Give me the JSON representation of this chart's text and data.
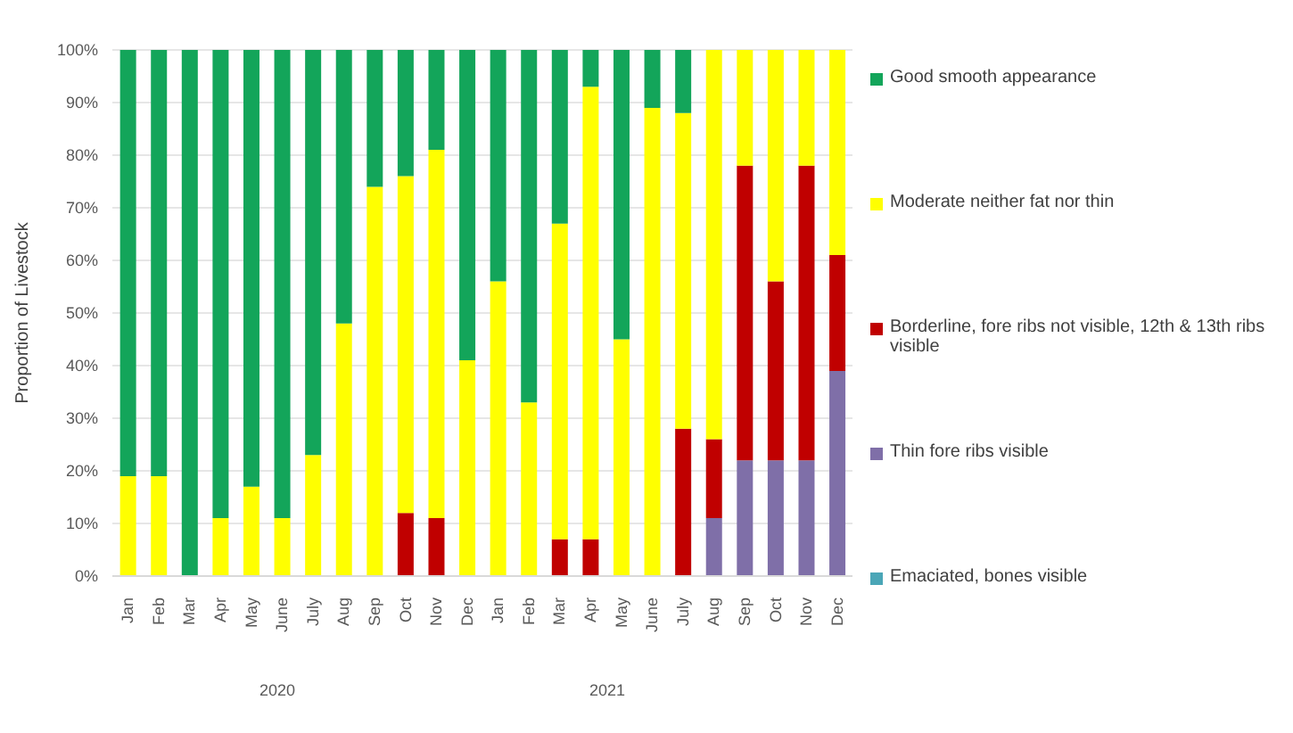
{
  "chart_data": {
    "type": "bar",
    "stacked": true,
    "ylabel": "Proportion of Livestock",
    "categories": [
      "Jan",
      "Feb",
      "Mar",
      "Apr",
      "May",
      "June",
      "July",
      "Aug",
      "Sep",
      "Oct",
      "Nov",
      "Dec",
      "Jan",
      "Feb",
      "Mar",
      "Apr",
      "May",
      "June",
      "July",
      "Aug",
      "Sep",
      "Oct",
      "Nov",
      "Dec"
    ],
    "series": [
      {
        "name": "Emaciated, bones visible",
        "color": "#4aa6b7",
        "values": [
          0,
          0,
          0,
          0,
          0,
          0,
          0,
          0,
          0,
          0,
          0,
          0,
          0,
          0,
          0,
          0,
          0,
          0,
          0,
          0,
          0,
          0,
          0,
          0
        ]
      },
      {
        "name": "Thin fore ribs visible",
        "color": "#7f6fa8",
        "values": [
          0,
          0,
          0,
          0,
          0,
          0,
          0,
          0,
          0,
          0,
          0,
          0,
          0,
          0,
          0,
          0,
          0,
          0,
          0,
          11,
          22,
          22,
          22,
          39
        ]
      },
      {
        "name": "Borderline, fore ribs not visible, 12th & 13th ribs visible",
        "color": "#c00000",
        "values": [
          0,
          0,
          0,
          0,
          0,
          0,
          0,
          0,
          0,
          12,
          11,
          0,
          0,
          0,
          7,
          7,
          0,
          0,
          28,
          15,
          56,
          34,
          56,
          22
        ]
      },
      {
        "name": "Moderate neither fat nor thin",
        "color": "#ffff00",
        "values": [
          19,
          19,
          0,
          11,
          17,
          11,
          23,
          48,
          74,
          64,
          70,
          41,
          56,
          33,
          60,
          86,
          45,
          89,
          60,
          74,
          22,
          44,
          22,
          39
        ]
      },
      {
        "name": "Good smooth appearance",
        "color": "#13a55a",
        "values": [
          81,
          81,
          100,
          89,
          83,
          89,
          77,
          52,
          26,
          24,
          19,
          59,
          44,
          67,
          33,
          7,
          55,
          11,
          12,
          0,
          0,
          0,
          0,
          0
        ]
      }
    ],
    "ylim": [
      0,
      100
    ],
    "yticks": [
      {
        "value": 0,
        "label": "0%"
      },
      {
        "value": 10,
        "label": "10%"
      },
      {
        "value": 20,
        "label": "20%"
      },
      {
        "value": 30,
        "label": "30%"
      },
      {
        "value": 40,
        "label": "40%"
      },
      {
        "value": 50,
        "label": "50%"
      },
      {
        "value": 60,
        "label": "60%"
      },
      {
        "value": 70,
        "label": "70%"
      },
      {
        "value": 80,
        "label": "80%"
      },
      {
        "value": 90,
        "label": "90%"
      },
      {
        "value": 100,
        "label": "100%"
      }
    ],
    "grid": "y",
    "legend": "right",
    "annotations": [
      "2020",
      "2021"
    ]
  }
}
